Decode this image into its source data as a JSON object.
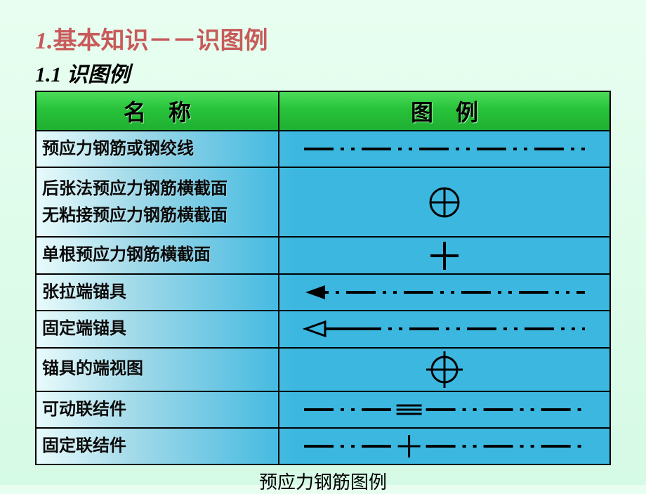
{
  "title_num": "1.",
  "title_text": "基本知识－－识图例",
  "subtitle": "1.1 识图例",
  "header_name": "名称",
  "header_legend": "图例",
  "caption": "预应力钢筋图例",
  "rows": [
    {
      "name": "预应力钢筋或钢绞线",
      "symbol": "dashline",
      "tall": false
    },
    {
      "name": "后张法预应力钢筋横截面\n无粘接预应力钢筋横截面",
      "symbol": "circle_plus",
      "tall": true
    },
    {
      "name": "单根预应力钢筋横截面",
      "symbol": "plus",
      "tall": false
    },
    {
      "name": "张拉端锚具",
      "symbol": "arrow_filled",
      "tall": false
    },
    {
      "name": "固定端锚具",
      "symbol": "arrow_open",
      "tall": false
    },
    {
      "name": "锚具的端视图",
      "symbol": "circle_cross",
      "tall": false
    },
    {
      "name": "可动联结件",
      "symbol": "dash_eq",
      "tall": false
    },
    {
      "name": "固定联结件",
      "symbol": "dash_plus",
      "tall": false
    }
  ],
  "style": {
    "stroke": "#000000",
    "stroke_width": 4,
    "header_gradient": [
      "#4bdc5a",
      "#28c23a",
      "#1fb032"
    ],
    "row_gradient": [
      "#e8fbfc",
      "#9ed8e8",
      "#3cb7e0"
    ],
    "title_color": "#c85a5a",
    "font_name": 24,
    "font_header": 32,
    "font_title": 34
  }
}
